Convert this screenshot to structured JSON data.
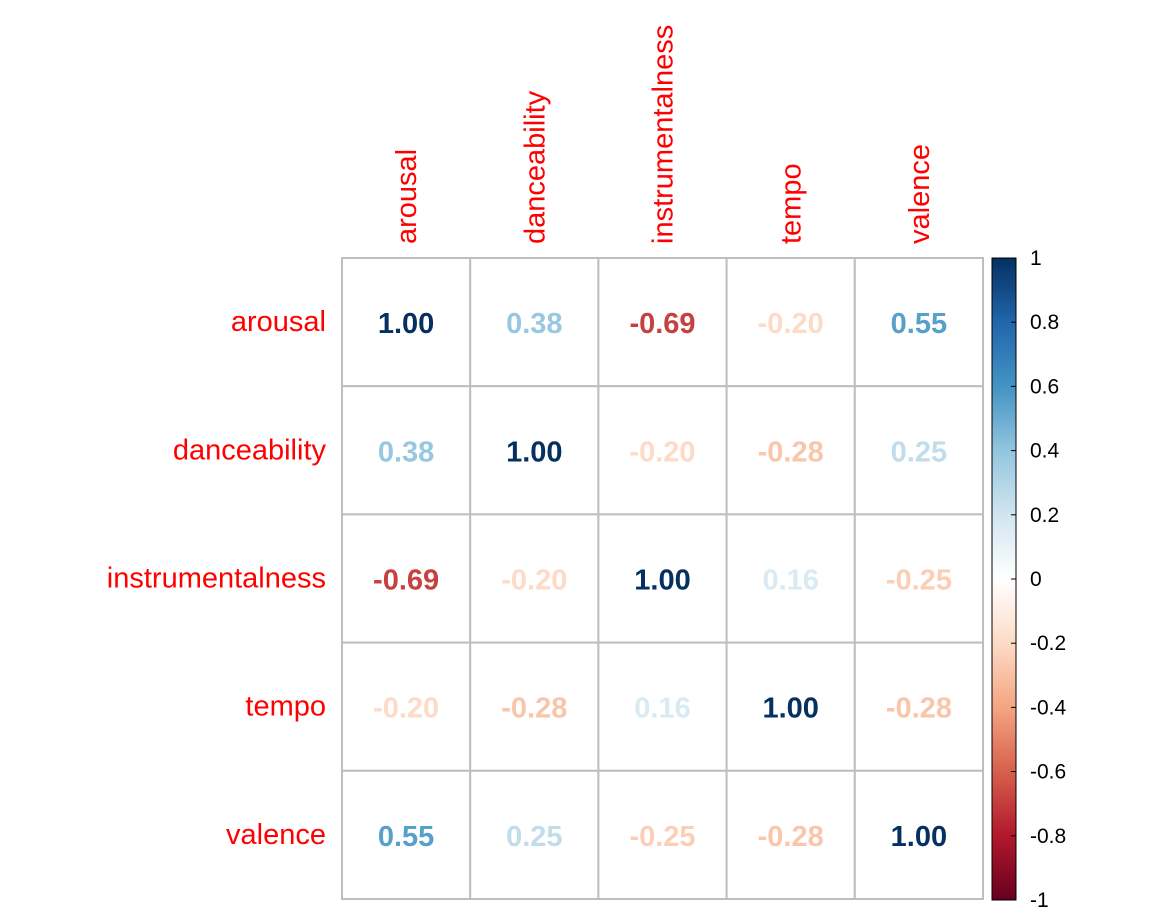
{
  "chart_data": {
    "type": "heatmap",
    "variables": [
      "arousal",
      "danceability",
      "instrumentalness",
      "tempo",
      "valence"
    ],
    "matrix": [
      [
        1.0,
        0.38,
        -0.69,
        -0.2,
        0.55
      ],
      [
        0.38,
        1.0,
        -0.2,
        -0.28,
        0.25
      ],
      [
        -0.69,
        -0.2,
        1.0,
        0.16,
        -0.25
      ],
      [
        -0.2,
        -0.28,
        0.16,
        1.0,
        -0.28
      ],
      [
        0.55,
        0.25,
        -0.25,
        -0.28,
        1.0
      ]
    ],
    "value_labels": [
      [
        "1.00",
        "0.38",
        "-0.69",
        "-0.20",
        "0.55"
      ],
      [
        "0.38",
        "1.00",
        "-0.20",
        "-0.28",
        "0.25"
      ],
      [
        "-0.69",
        "-0.20",
        "1.00",
        "0.16",
        "-0.25"
      ],
      [
        "-0.20",
        "-0.28",
        "0.16",
        "1.00",
        "-0.28"
      ],
      [
        "0.55",
        "0.25",
        "-0.25",
        "-0.28",
        "1.00"
      ]
    ],
    "colorbar": {
      "range": [
        -1,
        1
      ],
      "ticks": [
        1,
        0.8,
        0.6,
        0.4,
        0.2,
        0,
        -0.2,
        -0.4,
        -0.6,
        -0.8,
        -1
      ],
      "tick_labels": [
        "1",
        "0.8",
        "0.6",
        "0.4",
        "0.2",
        "0",
        "-0.2",
        "-0.4",
        "-0.6",
        "-0.8",
        "-1"
      ],
      "stops": [
        "#67001F",
        "#B2182B",
        "#D6604D",
        "#F4A582",
        "#FDDBC7",
        "#FFFFFF",
        "#D1E5F0",
        "#92C5DE",
        "#4393C3",
        "#2166AC",
        "#053061"
      ]
    },
    "label_color": "#FF0000",
    "grid_color": "#BEBEBE"
  }
}
